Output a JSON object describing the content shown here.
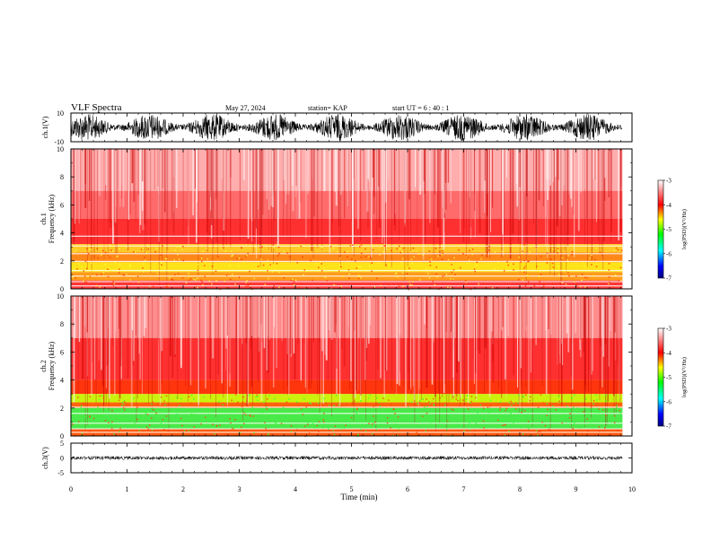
{
  "header": {
    "title": "VLF Spectra",
    "date": "May 27, 2024",
    "station": "station= KAP",
    "start": "start  UT  =   6  : 40 : 1"
  },
  "chart_data": [
    {
      "type": "line",
      "name": "ch1-waveform",
      "ylabel": "ch.1(V)",
      "ylim": [
        -10,
        10
      ],
      "yticks": [
        "10",
        "-10"
      ],
      "xlim": [
        0,
        10
      ]
    },
    {
      "type": "heatmap",
      "name": "ch1-spectrogram",
      "ylabel": "ch.1\nFrequency  (kHz)",
      "ylim": [
        0,
        10
      ],
      "yticks": [
        "0",
        "2",
        "4",
        "6",
        "8",
        "10"
      ],
      "xlim": [
        0,
        9.83
      ],
      "colorbar": {
        "label": "log(PSD)(V²/Hz)",
        "range": [
          -7,
          -3
        ],
        "ticks": [
          "-3",
          "-4",
          "-5",
          "-6",
          "-7"
        ]
      }
    },
    {
      "type": "heatmap",
      "name": "ch2-spectrogram",
      "ylabel": "ch.2\nFrequency  (kHz)",
      "ylim": [
        0,
        10
      ],
      "yticks": [
        "0",
        "2",
        "4",
        "6",
        "8",
        "10"
      ],
      "xlim": [
        0,
        9.83
      ],
      "colorbar": {
        "label": "log(PSD)(V²/Hz)",
        "range": [
          -7,
          -3
        ],
        "ticks": [
          "-3",
          "-4",
          "-5",
          "-6",
          "-7"
        ]
      }
    },
    {
      "type": "line",
      "name": "ch3-waveform",
      "ylabel": "ch.3(V)",
      "ylim": [
        -5,
        5
      ],
      "yticks": [
        "5",
        "0",
        "-5"
      ],
      "xlim": [
        0,
        10
      ]
    }
  ],
  "xaxis": {
    "label": "Time  (min)",
    "ticks": [
      "0",
      "1",
      "2",
      "3",
      "4",
      "5",
      "6",
      "7",
      "8",
      "9",
      "10"
    ],
    "range": [
      0,
      10
    ]
  },
  "colors": {
    "waveform": "#000000",
    "high": "#ff0000",
    "mid": "#ffff00",
    "low": "#00dd00"
  }
}
